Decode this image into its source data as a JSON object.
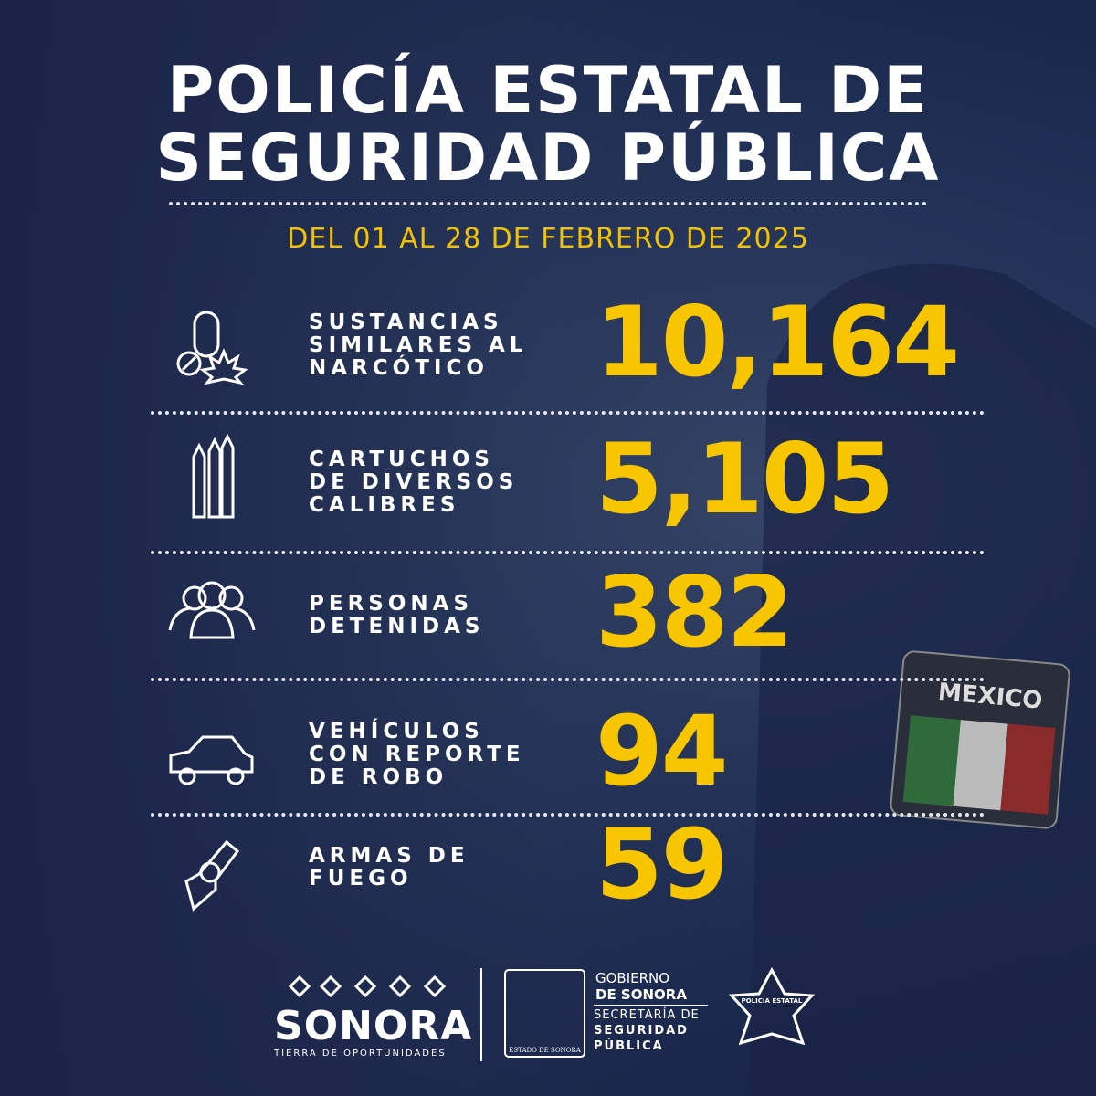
{
  "header": {
    "title": [
      "POLICÍA ESTATAL DE",
      "SEGURIDAD PÚBLICA"
    ],
    "subtitle": "DEL 01 AL 28 DE FEBRERO DE 2025"
  },
  "items": [
    {
      "label": [
        "SUSTANCIAS",
        "SIMILARES AL",
        "NARCÓTICO"
      ],
      "value": "10,164"
    },
    {
      "label": [
        "CARTUCHOS",
        "DE DIVERSOS",
        "CALIBRES"
      ],
      "value": "5,105"
    },
    {
      "label": [
        "PERSONAS",
        "DETENIDAS"
      ],
      "value": "382"
    },
    {
      "label": [
        "VEHÍCULOS",
        "CON REPORTE",
        "DE ROBO"
      ],
      "value": "94"
    },
    {
      "label": [
        "ARMAS DE",
        "FUEGO"
      ],
      "value": "59"
    }
  ],
  "footer": {
    "sonora": "SONORA",
    "tagline": "TIERRA DE OPORTUNIDADES",
    "crest": "ESTADO DE SONORA",
    "gov": [
      "GOBIERNO",
      "DE SONORA"
    ],
    "secretaria": [
      "SECRETARÍA DE",
      "SEGURIDAD",
      "PÚBLICA"
    ],
    "badge": "POLICÍA ESTATAL"
  },
  "patch": "MEXICO"
}
